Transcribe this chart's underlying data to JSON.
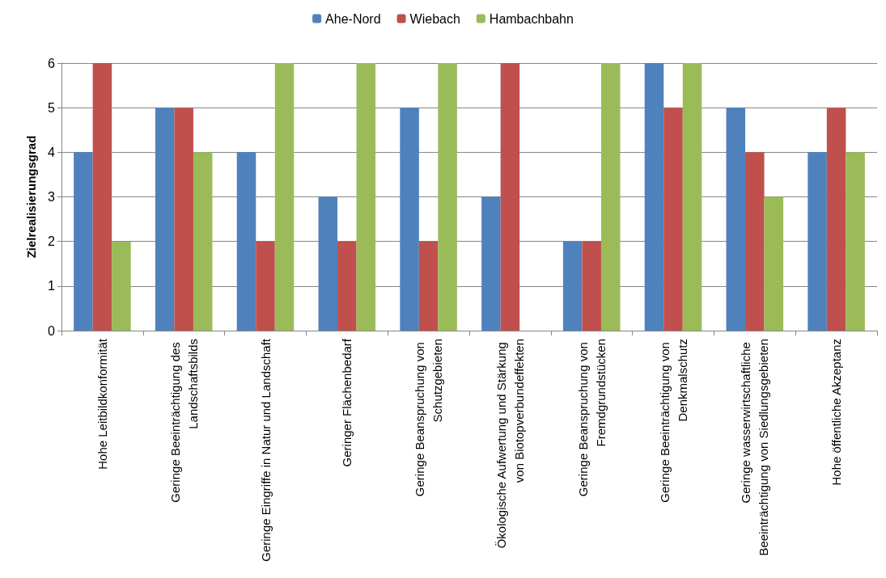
{
  "chart_data": {
    "type": "bar",
    "ylabel": "Zielrealisierungsgrad",
    "categories": [
      "Hohe Leitbildkonformität",
      "Geringe Beeinträchtigung des Landschaftsbilds",
      "Geringe Eingriffe in Natur und Landschaft",
      "Geringer Flächenbedarf",
      "Geringe Beanspruchung von Schutzgebieten",
      "Ökologische Aufwertung und Stärkung von Biotopverbundeffekten",
      "Geringe Beanspruchung von Fremdgrundstücken",
      "Geringe Beeinträchtigung von Denkmalschutz",
      "Geringe wasserwirtschaftliche Beeinträchtigung von Siedlungsgebieten",
      "Hohe öffentliche Akzeptanz"
    ],
    "series": [
      {
        "name": "Ahe-Nord",
        "color": "#4f81bd",
        "values": [
          4,
          5,
          4,
          3,
          5,
          3,
          2,
          6,
          5,
          4
        ]
      },
      {
        "name": "Wiebach",
        "color": "#c0504d",
        "values": [
          6,
          5,
          2,
          2,
          2,
          6,
          2,
          5,
          4,
          5
        ]
      },
      {
        "name": "Hambachbahn",
        "color": "#9bbb59",
        "values": [
          2,
          4,
          6,
          6,
          6,
          0,
          6,
          6,
          3,
          4
        ]
      }
    ],
    "ylim": [
      0,
      6
    ],
    "yticks": [
      0,
      1,
      2,
      3,
      4,
      5,
      6
    ],
    "grid": "y",
    "legend": "top"
  }
}
